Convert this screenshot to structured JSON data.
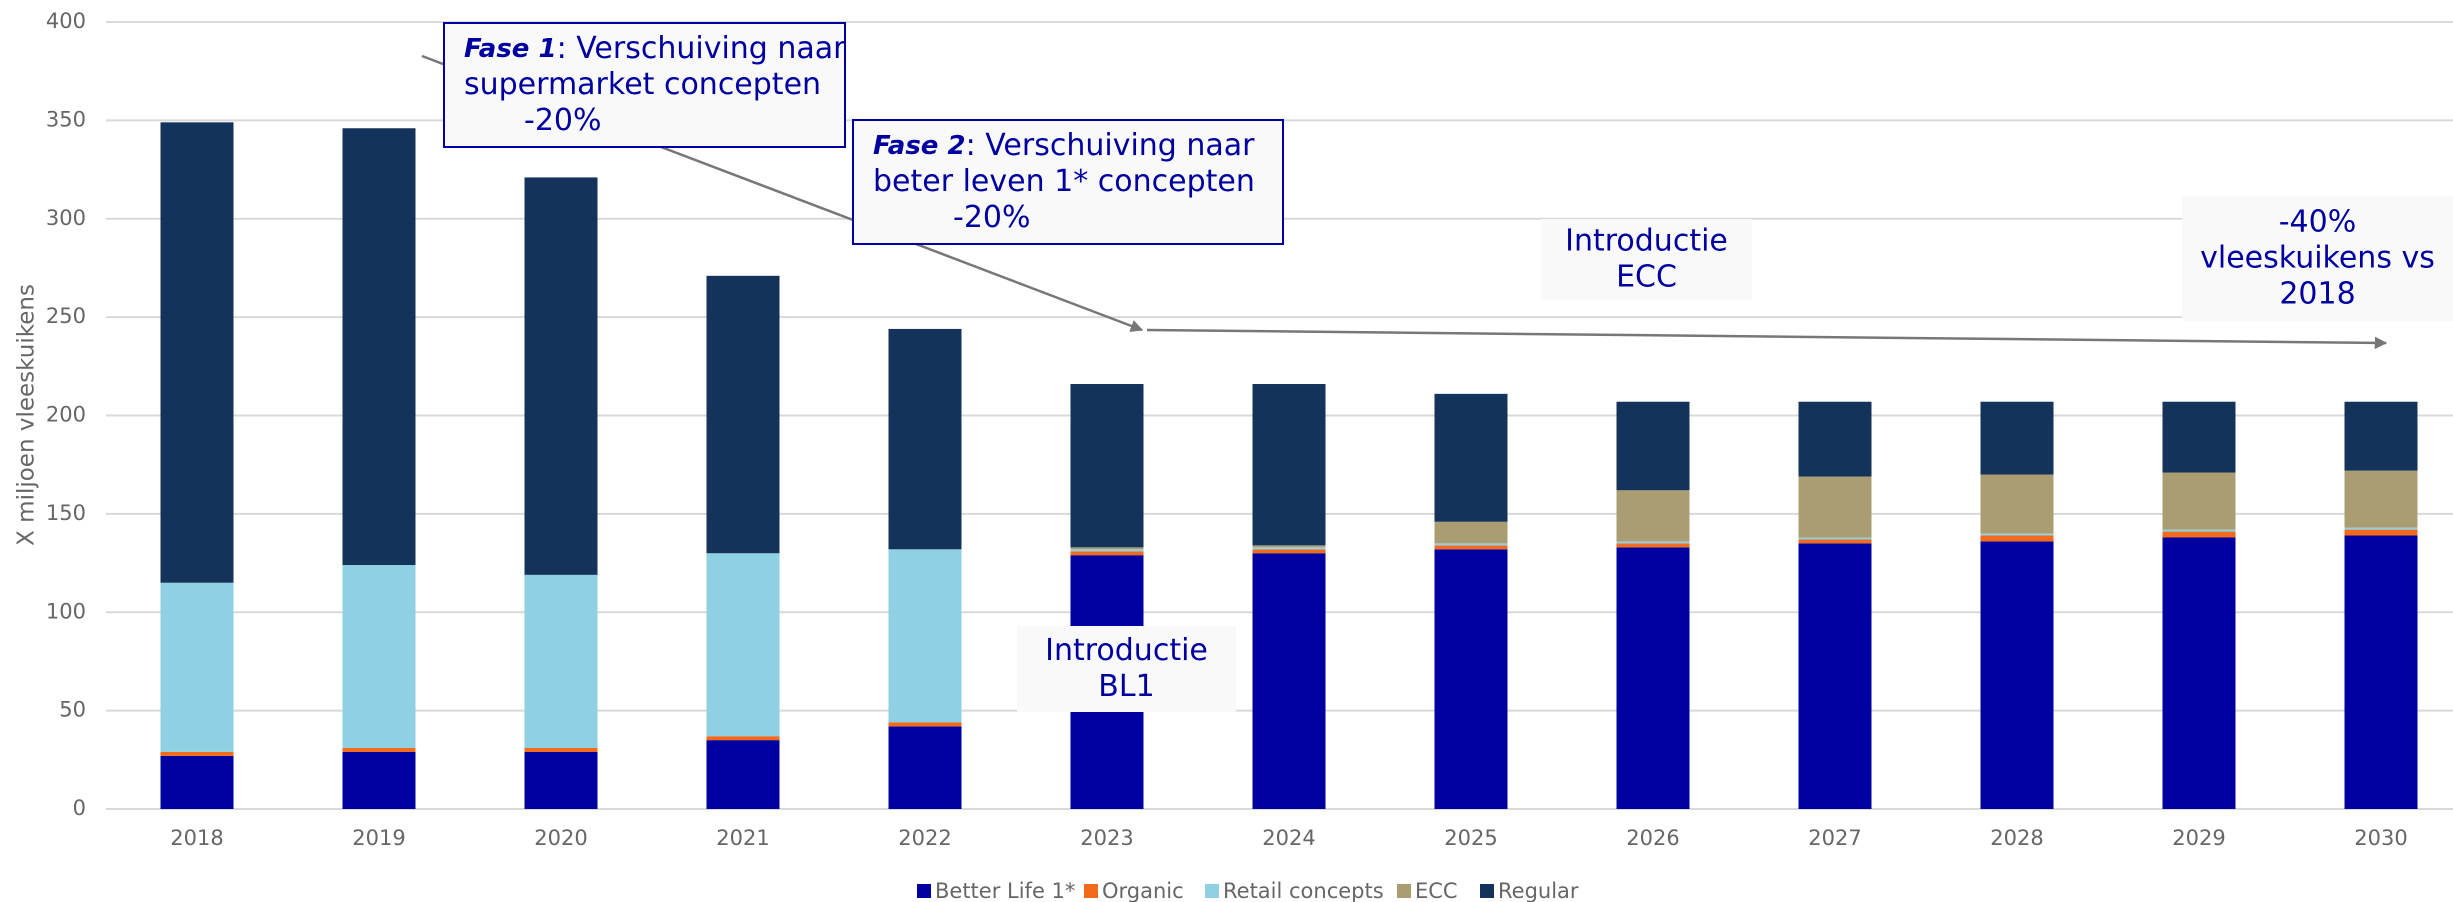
{
  "chart_data": {
    "type": "stacked-bar",
    "y_label": "X miljoen vleeskuikens",
    "categories": [
      "2018",
      "2019",
      "2020",
      "2021",
      "2022",
      "2023",
      "2024",
      "2025",
      "2026",
      "2027",
      "2028",
      "2029",
      "2030"
    ],
    "series": [
      {
        "name": "Better Life 1*",
        "color": "#0000a0",
        "values": [
          27,
          29,
          29,
          35,
          42,
          129,
          130,
          132,
          133,
          135,
          136,
          138,
          139
        ]
      },
      {
        "name": "Organic",
        "color": "#f26a1b",
        "values": [
          2,
          2,
          2,
          2,
          2,
          2,
          2,
          2,
          2,
          2,
          3,
          3,
          3
        ]
      },
      {
        "name": "Retail concepts",
        "color": "#8fd0e2",
        "values": [
          86,
          93,
          88,
          93,
          88,
          1,
          1,
          1,
          1,
          1,
          1,
          1,
          1
        ]
      },
      {
        "name": "ECC",
        "color": "#ab9d72",
        "values": [
          0,
          0,
          0,
          0,
          0,
          1,
          1,
          11,
          26,
          31,
          30,
          29,
          29
        ]
      },
      {
        "name": "Regular",
        "color": "#14335a",
        "values": [
          234,
          222,
          202,
          141,
          112,
          83,
          82,
          65,
          45,
          38,
          37,
          36,
          35
        ]
      }
    ],
    "ylim": [
      0,
      400
    ],
    "yticks": [
      0,
      50,
      100,
      150,
      200,
      250,
      300,
      350,
      400
    ],
    "grid": true,
    "legend": "bottom",
    "annotations": [
      {
        "label": "Fase 1",
        "text": [
          ": Verschuiving naar",
          "supermarket concepten",
          "-20%"
        ]
      },
      {
        "label": "Fase 2",
        "text": [
          ": Verschuiving naar",
          "beter leven 1* concepten",
          "-20%"
        ]
      },
      {
        "text": [
          "Introductie",
          "ECC"
        ]
      },
      {
        "text": [
          "-40%",
          "vleeskuikens vs",
          "2018"
        ]
      },
      {
        "text": [
          "Introductie",
          "BL1"
        ]
      }
    ]
  }
}
